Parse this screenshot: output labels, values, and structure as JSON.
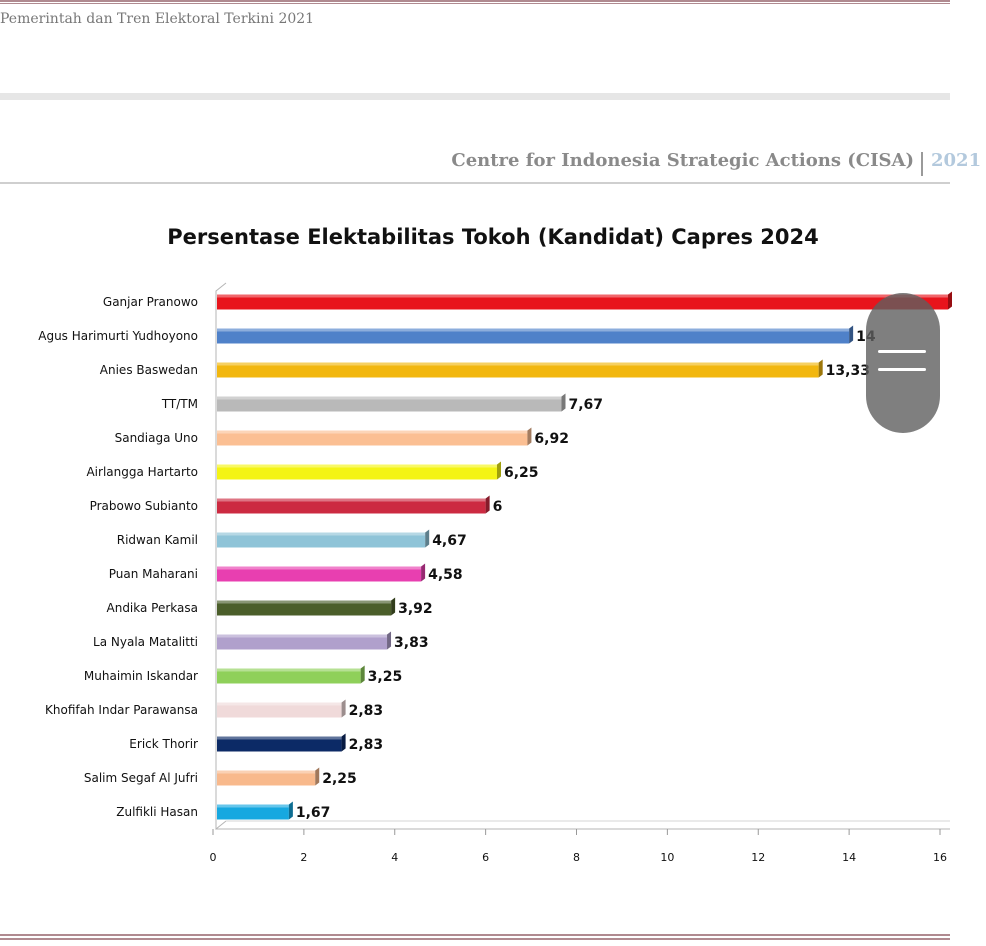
{
  "document": {
    "header": "Pemerintah dan Tren Elektoral Terkini 2021",
    "org_name": "Centre for Indonesia Strategic Actions (CISA)",
    "org_year": "2021"
  },
  "chart_data": {
    "type": "bar",
    "orientation": "horizontal",
    "title": "Persentase Elektabilitas Tokoh (Kandidat) Capres 2024",
    "xlabel": "",
    "ylabel": "",
    "xlim": [
      0,
      16
    ],
    "ticks": [
      0,
      2,
      4,
      6,
      8,
      10,
      12,
      14,
      16
    ],
    "categories": [
      "Ganjar Pranowo",
      "Agus Harimurti Yudhoyono",
      "Anies Baswedan",
      "TT/TM",
      "Sandiaga Uno",
      "Airlangga Hartarto",
      "Prabowo Subianto",
      "Ridwan Kamil",
      "Puan Maharani",
      "Andika Perkasa",
      "La Nyala Matalitti",
      "Muhaimin Iskandar",
      "Khofifah Indar Parawansa",
      "Erick Thorir",
      "Salim Segaf Al Jufri",
      "Zulfikli Hasan"
    ],
    "values": [
      16.2,
      14,
      13.33,
      7.67,
      6.92,
      6.25,
      6,
      4.67,
      4.58,
      3.92,
      3.83,
      3.25,
      2.83,
      2.83,
      2.25,
      1.67
    ],
    "value_labels": [
      "",
      "14",
      "13,33",
      "7,67",
      "6,92",
      "6,25",
      "6",
      "4,67",
      "4,58",
      "3,92",
      "3,83",
      "3,25",
      "2,83",
      "2,83",
      "2,25",
      "1,67"
    ],
    "colors": [
      "#e8141c",
      "#4f81c9",
      "#f2b70f",
      "#b9b9b9",
      "#fbbf93",
      "#f4f414",
      "#cc2a41",
      "#8fc4d8",
      "#e83fb0",
      "#4b5e2a",
      "#b0a0cc",
      "#8fd05a",
      "#f0dada",
      "#0c2a66",
      "#f8b98c",
      "#16a8e0"
    ]
  },
  "overlay": {
    "scroll_handle": "menu-icon"
  }
}
